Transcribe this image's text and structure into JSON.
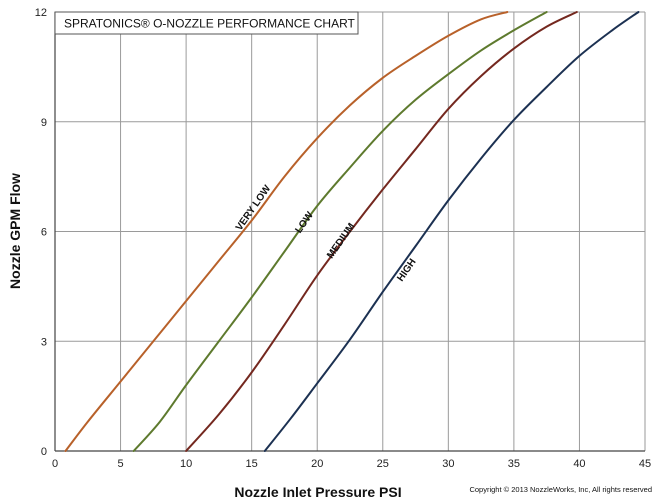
{
  "chart_data": {
    "type": "line",
    "title": "SPRATONICS® O-NOZZLE PERFORMANCE CHART",
    "xlabel": "Nozzle Inlet Pressure PSI",
    "ylabel": "Nozzle GPM Flow",
    "xlim": [
      0,
      45
    ],
    "ylim": [
      0,
      12
    ],
    "xticks": [
      0,
      5,
      10,
      15,
      20,
      25,
      30,
      35,
      40,
      45
    ],
    "yticks": [
      0,
      3,
      6,
      9,
      12
    ],
    "grid": true,
    "series": [
      {
        "name": "VERY LOW",
        "color": "#b8612a",
        "points": [
          [
            0.8,
            0
          ],
          [
            2.5,
            0.8
          ],
          [
            5,
            1.9
          ],
          [
            7.5,
            3.0
          ],
          [
            10,
            4.1
          ],
          [
            12.5,
            5.2
          ],
          [
            15,
            6.3
          ],
          [
            17.5,
            7.5
          ],
          [
            20,
            8.55
          ],
          [
            22.5,
            9.45
          ],
          [
            25,
            10.2
          ],
          [
            27.5,
            10.8
          ],
          [
            30,
            11.35
          ],
          [
            32.5,
            11.8
          ],
          [
            34.5,
            12
          ]
        ]
      },
      {
        "name": "LOW",
        "color": "#5e7a2e",
        "points": [
          [
            6,
            0
          ],
          [
            8,
            0.8
          ],
          [
            10,
            1.8
          ],
          [
            12.5,
            3.0
          ],
          [
            15,
            4.2
          ],
          [
            17.5,
            5.45
          ],
          [
            20,
            6.7
          ],
          [
            22.5,
            7.75
          ],
          [
            25,
            8.75
          ],
          [
            27.5,
            9.6
          ],
          [
            30,
            10.3
          ],
          [
            32.5,
            10.95
          ],
          [
            35,
            11.5
          ],
          [
            37.5,
            12
          ]
        ]
      },
      {
        "name": "MEDIUM",
        "color": "#74281f",
        "points": [
          [
            10,
            0
          ],
          [
            12.5,
            1.0
          ],
          [
            15,
            2.15
          ],
          [
            17.5,
            3.45
          ],
          [
            20,
            4.8
          ],
          [
            22.5,
            6.0
          ],
          [
            25,
            7.15
          ],
          [
            27.5,
            8.25
          ],
          [
            30,
            9.35
          ],
          [
            32.5,
            10.25
          ],
          [
            35,
            11.0
          ],
          [
            37.5,
            11.6
          ],
          [
            39.8,
            12
          ]
        ]
      },
      {
        "name": "HIGH",
        "color": "#1c3152",
        "points": [
          [
            16,
            0
          ],
          [
            18,
            0.9
          ],
          [
            20,
            1.85
          ],
          [
            22.5,
            3.05
          ],
          [
            25,
            4.35
          ],
          [
            27.5,
            5.6
          ],
          [
            30,
            6.85
          ],
          [
            32.5,
            8.0
          ],
          [
            35,
            9.05
          ],
          [
            37.5,
            9.95
          ],
          [
            40,
            10.8
          ],
          [
            42.5,
            11.5
          ],
          [
            44.5,
            12
          ]
        ]
      }
    ],
    "annotations": [
      {
        "text": "VERY LOW",
        "x": 15.3,
        "y": 6.6,
        "angle": -55
      },
      {
        "text": "LOW",
        "x": 19.2,
        "y": 6.2,
        "angle": -55
      },
      {
        "text": "MEDIUM",
        "x": 22.0,
        "y": 5.7,
        "angle": -55
      },
      {
        "text": "HIGH",
        "x": 27.0,
        "y": 4.9,
        "angle": -55
      }
    ]
  },
  "footer": {
    "copyright": "Copyright © 2013 NozzleWorks, Inc, All rights reserved"
  }
}
